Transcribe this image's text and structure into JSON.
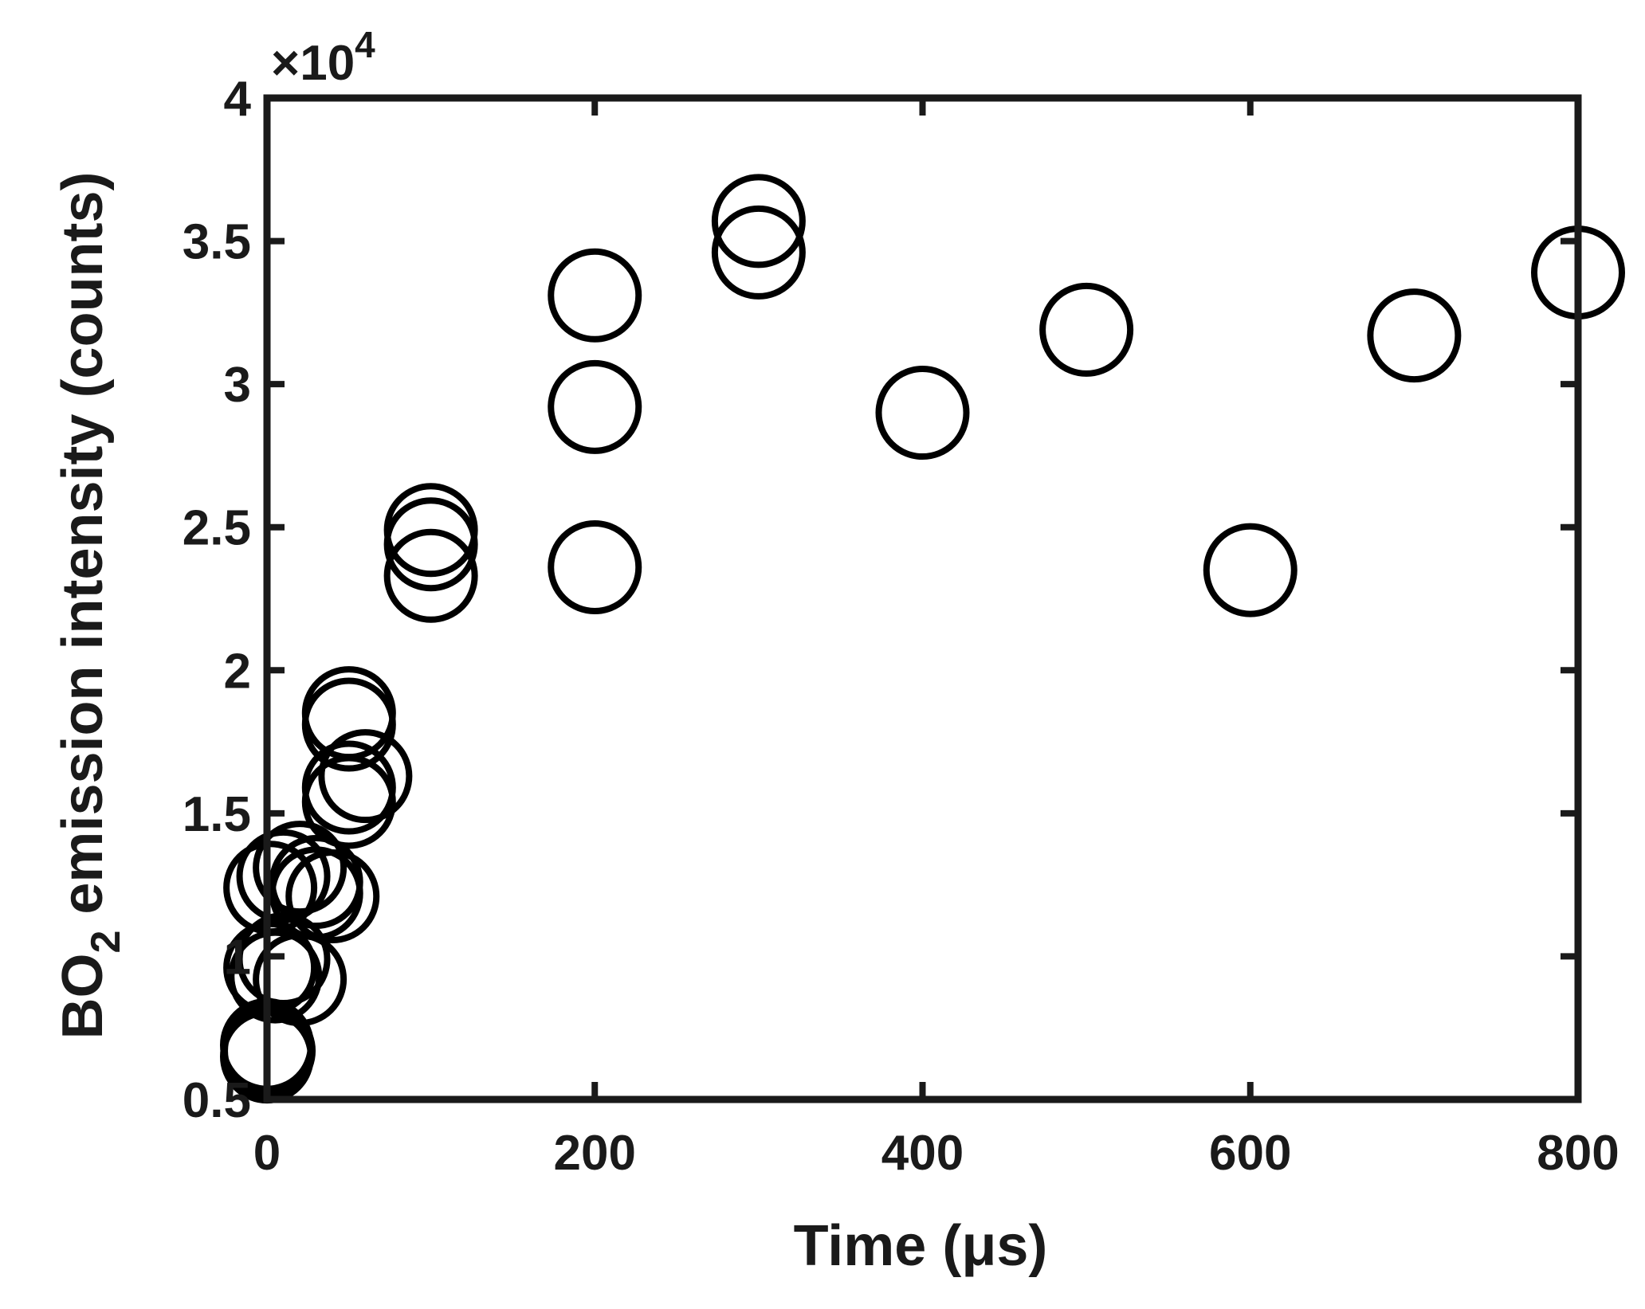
{
  "chart_data": {
    "type": "scatter",
    "xlabel": "Time (μs)",
    "ylabel_main": "BO",
    "ylabel_subscript": "2",
    "ylabel_rest": " emission intensity (counts)",
    "y_multiplier_base": "×10",
    "y_multiplier_exponent": "4",
    "xlim": [
      0,
      800
    ],
    "ylim": [
      0.5,
      4
    ],
    "xticks": [
      0,
      200,
      400,
      600,
      800
    ],
    "xtick_labels": [
      "0",
      "200",
      "400",
      "600",
      "800"
    ],
    "yticks": [
      0.5,
      1,
      1.5,
      2,
      2.5,
      3,
      3.5,
      4
    ],
    "ytick_labels": [
      "0.5",
      "1",
      "1.5",
      "2",
      "2.5",
      "3",
      "3.5",
      "4"
    ],
    "grid": false,
    "marker": "open-circle",
    "marker_color": "#000000",
    "series": [
      {
        "points": [
          {
            "x": 0,
            "y": 0.65
          },
          {
            "x": 0,
            "y": 0.69
          },
          {
            "x": 1,
            "y": 0.67
          },
          {
            "x": 2,
            "y": 0.96
          },
          {
            "x": 5,
            "y": 0.93
          },
          {
            "x": 10,
            "y": 0.99
          },
          {
            "x": 20,
            "y": 0.92
          },
          {
            "x": 2,
            "y": 1.24
          },
          {
            "x": 10,
            "y": 1.28
          },
          {
            "x": 20,
            "y": 1.31
          },
          {
            "x": 30,
            "y": 1.26
          },
          {
            "x": 30,
            "y": 1.22
          },
          {
            "x": 40,
            "y": 1.21
          },
          {
            "x": 50,
            "y": 1.54
          },
          {
            "x": 50,
            "y": 1.59
          },
          {
            "x": 60,
            "y": 1.63
          },
          {
            "x": 50,
            "y": 1.81
          },
          {
            "x": 50,
            "y": 1.85
          },
          {
            "x": 100,
            "y": 2.49
          },
          {
            "x": 100,
            "y": 2.44
          },
          {
            "x": 100,
            "y": 2.33
          },
          {
            "x": 200,
            "y": 3.31
          },
          {
            "x": 200,
            "y": 2.92
          },
          {
            "x": 200,
            "y": 2.36
          },
          {
            "x": 300,
            "y": 3.57
          },
          {
            "x": 300,
            "y": 3.46
          },
          {
            "x": 400,
            "y": 2.9
          },
          {
            "x": 500,
            "y": 3.19
          },
          {
            "x": 600,
            "y": 2.35
          },
          {
            "x": 700,
            "y": 3.17
          },
          {
            "x": 800,
            "y": 3.39
          }
        ]
      }
    ]
  }
}
